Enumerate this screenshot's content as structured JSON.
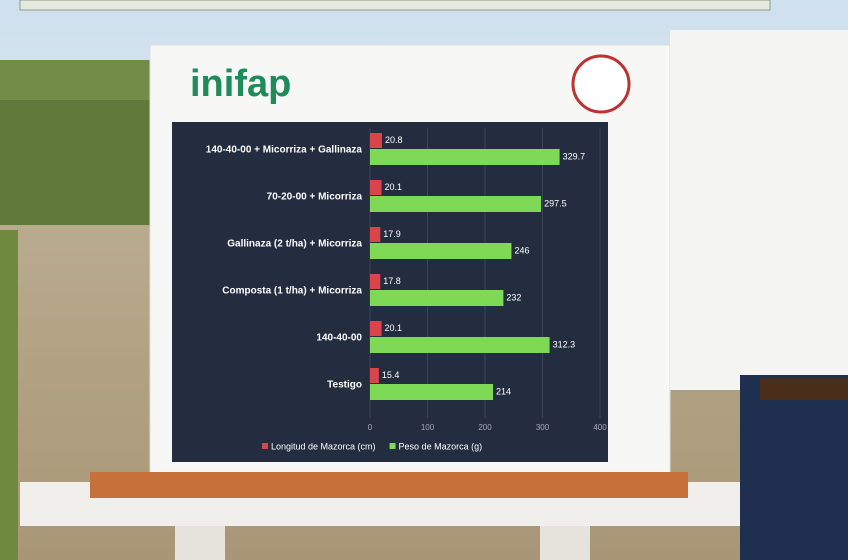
{
  "logo": "inifap",
  "chart_data": {
    "type": "bar",
    "orientation": "horizontal",
    "categories": [
      "140-40-00 + Micorriza + Gallinaza",
      "70-20-00 + Micorriza",
      "Gallinaza (2 t/ha) + Micorriza",
      "Composta (1 t/ha) + Micorriza",
      "140-40-00",
      "Testigo"
    ],
    "series": [
      {
        "name": "Longitud de Mazorca (cm)",
        "color": "#d9454a",
        "values": [
          20.8,
          20.1,
          17.9,
          17.8,
          20.1,
          15.4
        ]
      },
      {
        "name": "Peso de Mazorca (g)",
        "color": "#7ed957",
        "values": [
          329.7,
          297.5,
          246,
          232,
          312.3,
          214
        ]
      }
    ],
    "xlim": [
      0,
      400
    ],
    "xticks": [
      0,
      100,
      200,
      300,
      400
    ],
    "legend": "bottom"
  }
}
